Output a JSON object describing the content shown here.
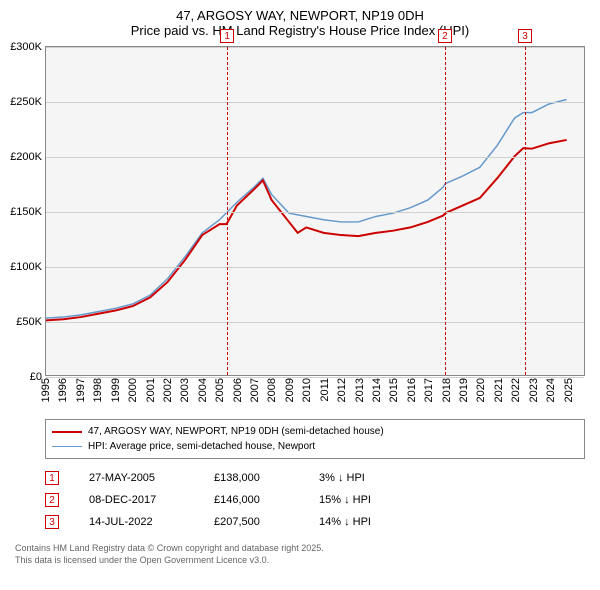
{
  "title": {
    "line1": "47, ARGOSY WAY, NEWPORT, NP19 0DH",
    "line2": "Price paid vs. HM Land Registry's House Price Index (HPI)"
  },
  "chart": {
    "type": "line",
    "background_color": "#f5f5f5",
    "border_color": "#888888",
    "grid_color": "#d0d0d0",
    "ylim": [
      0,
      300000
    ],
    "ytick_step": 50000,
    "ytick_labels": [
      "£0",
      "£50K",
      "£100K",
      "£150K",
      "£200K",
      "£250K",
      "£300K"
    ],
    "xlim": [
      1995,
      2026
    ],
    "xtick_step": 1,
    "xtick_labels": [
      "1995",
      "1996",
      "1997",
      "1998",
      "1999",
      "2000",
      "2001",
      "2002",
      "2003",
      "2004",
      "2005",
      "2006",
      "2007",
      "2008",
      "2009",
      "2010",
      "2011",
      "2012",
      "2013",
      "2014",
      "2015",
      "2016",
      "2017",
      "2018",
      "2019",
      "2020",
      "2021",
      "2022",
      "2023",
      "2024",
      "2025"
    ],
    "series": [
      {
        "name": "price_paid",
        "label": "47, ARGOSY WAY, NEWPORT, NP19 0DH (semi-detached house)",
        "color": "#cc0000",
        "line_width": 2,
        "points": [
          [
            1995,
            50000
          ],
          [
            1996,
            51000
          ],
          [
            1997,
            53000
          ],
          [
            1998,
            56000
          ],
          [
            1999,
            59000
          ],
          [
            2000,
            63000
          ],
          [
            2001,
            71000
          ],
          [
            2002,
            85000
          ],
          [
            2003,
            105000
          ],
          [
            2004,
            128000
          ],
          [
            2005,
            138000
          ],
          [
            2005.4,
            138000
          ],
          [
            2006,
            155000
          ],
          [
            2007,
            170000
          ],
          [
            2007.5,
            178000
          ],
          [
            2008,
            160000
          ],
          [
            2009,
            140000
          ],
          [
            2009.5,
            130000
          ],
          [
            2010,
            135000
          ],
          [
            2011,
            130000
          ],
          [
            2012,
            128000
          ],
          [
            2013,
            127000
          ],
          [
            2014,
            130000
          ],
          [
            2015,
            132000
          ],
          [
            2016,
            135000
          ],
          [
            2017,
            140000
          ],
          [
            2017.9,
            146000
          ],
          [
            2018,
            148000
          ],
          [
            2019,
            155000
          ],
          [
            2020,
            162000
          ],
          [
            2021,
            180000
          ],
          [
            2022,
            200000
          ],
          [
            2022.5,
            207500
          ],
          [
            2023,
            207000
          ],
          [
            2024,
            212000
          ],
          [
            2025,
            215000
          ]
        ]
      },
      {
        "name": "hpi",
        "label": "HPI: Average price, semi-detached house, Newport",
        "color": "#6699cc",
        "line_width": 1.5,
        "points": [
          [
            1995,
            52000
          ],
          [
            1996,
            53000
          ],
          [
            1997,
            55000
          ],
          [
            1998,
            58000
          ],
          [
            1999,
            61000
          ],
          [
            2000,
            65000
          ],
          [
            2001,
            73000
          ],
          [
            2002,
            88000
          ],
          [
            2003,
            108000
          ],
          [
            2004,
            130000
          ],
          [
            2005,
            142000
          ],
          [
            2006,
            158000
          ],
          [
            2007,
            172000
          ],
          [
            2007.5,
            180000
          ],
          [
            2008,
            165000
          ],
          [
            2009,
            148000
          ],
          [
            2010,
            145000
          ],
          [
            2011,
            142000
          ],
          [
            2012,
            140000
          ],
          [
            2013,
            140000
          ],
          [
            2014,
            145000
          ],
          [
            2015,
            148000
          ],
          [
            2016,
            153000
          ],
          [
            2017,
            160000
          ],
          [
            2017.9,
            172000
          ],
          [
            2018,
            175000
          ],
          [
            2019,
            182000
          ],
          [
            2020,
            190000
          ],
          [
            2021,
            210000
          ],
          [
            2022,
            235000
          ],
          [
            2022.5,
            240000
          ],
          [
            2023,
            240000
          ],
          [
            2024,
            248000
          ],
          [
            2025,
            252000
          ]
        ]
      }
    ],
    "markers": [
      {
        "id": "1",
        "x": 2005.4,
        "box_y_offset": -18
      },
      {
        "id": "2",
        "x": 2017.9,
        "box_y_offset": -18
      },
      {
        "id": "3",
        "x": 2022.5,
        "box_y_offset": -18
      }
    ],
    "marker_color": "#cc0000"
  },
  "legend": {
    "border_color": "#888888"
  },
  "sales": [
    {
      "id": "1",
      "date": "27-MAY-2005",
      "price": "£138,000",
      "delta": "3% ↓ HPI"
    },
    {
      "id": "2",
      "date": "08-DEC-2017",
      "price": "£146,000",
      "delta": "15% ↓ HPI"
    },
    {
      "id": "3",
      "date": "14-JUL-2022",
      "price": "£207,500",
      "delta": "14% ↓ HPI"
    }
  ],
  "footer": {
    "line1": "Contains HM Land Registry data © Crown copyright and database right 2025.",
    "line2": "This data is licensed under the Open Government Licence v3.0."
  }
}
